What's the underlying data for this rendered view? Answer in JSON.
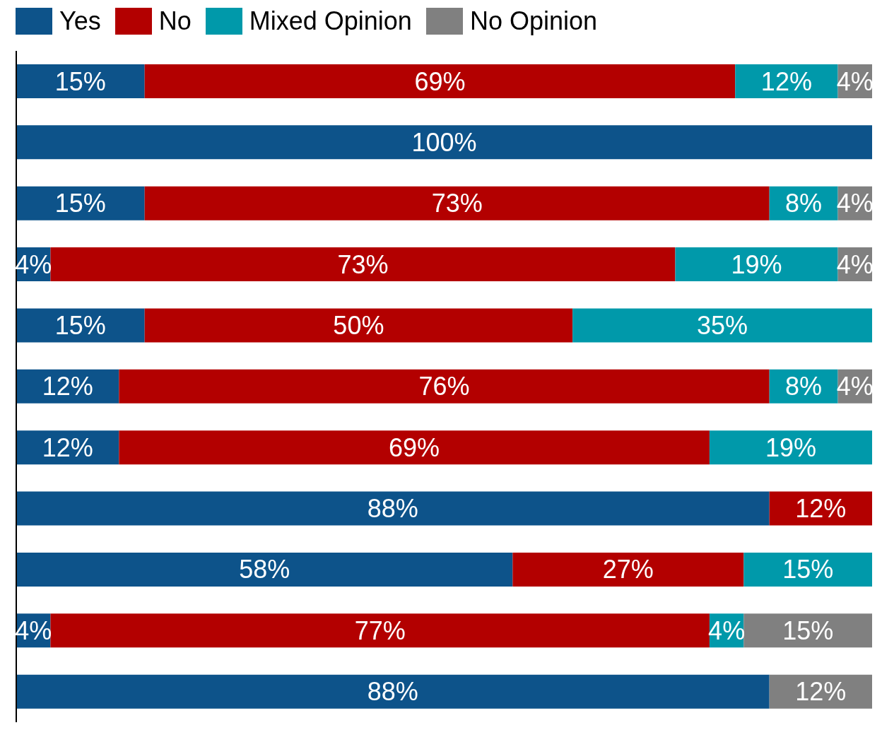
{
  "chart_data": {
    "type": "bar",
    "orientation": "horizontal",
    "stacked": true,
    "legend": "top left",
    "tick_labels": false,
    "categories": [
      null,
      null,
      null,
      null,
      null,
      null,
      null,
      null,
      null,
      null,
      null
    ],
    "series": [
      {
        "name": "Yes",
        "color": "#0d538a",
        "values": [
          15,
          100,
          15,
          4,
          15,
          12,
          12,
          88,
          58,
          4,
          88
        ],
        "value_labels": [
          "15%",
          "100%",
          "15%",
          "4%",
          "15%",
          "12%",
          "12%",
          "88%",
          "58%",
          "4%",
          "88%"
        ]
      },
      {
        "name": "No",
        "color": "#b30000",
        "values": [
          69,
          null,
          73,
          73,
          50,
          76,
          69,
          12,
          27,
          77,
          null
        ],
        "value_labels": [
          "69%",
          null,
          "73%",
          "73%",
          "50%",
          "76%",
          "69%",
          "12%",
          "27%",
          "77%",
          null
        ]
      },
      {
        "name": "Mixed Opinion",
        "color": "#0099aa",
        "values": [
          12,
          null,
          8,
          19,
          35,
          8,
          19,
          null,
          15,
          4,
          null
        ],
        "value_labels": [
          "12%",
          null,
          "8%",
          "19%",
          "35%",
          "8%",
          "19%",
          null,
          "15%",
          "4%",
          null
        ]
      },
      {
        "name": "No Opinion",
        "color": "#808080",
        "values": [
          4,
          null,
          4,
          4,
          null,
          4,
          null,
          null,
          null,
          15,
          12
        ],
        "value_labels": [
          "4%",
          null,
          "4%",
          "4%",
          null,
          "4%",
          null,
          null,
          null,
          "15%",
          "12%"
        ]
      }
    ]
  }
}
